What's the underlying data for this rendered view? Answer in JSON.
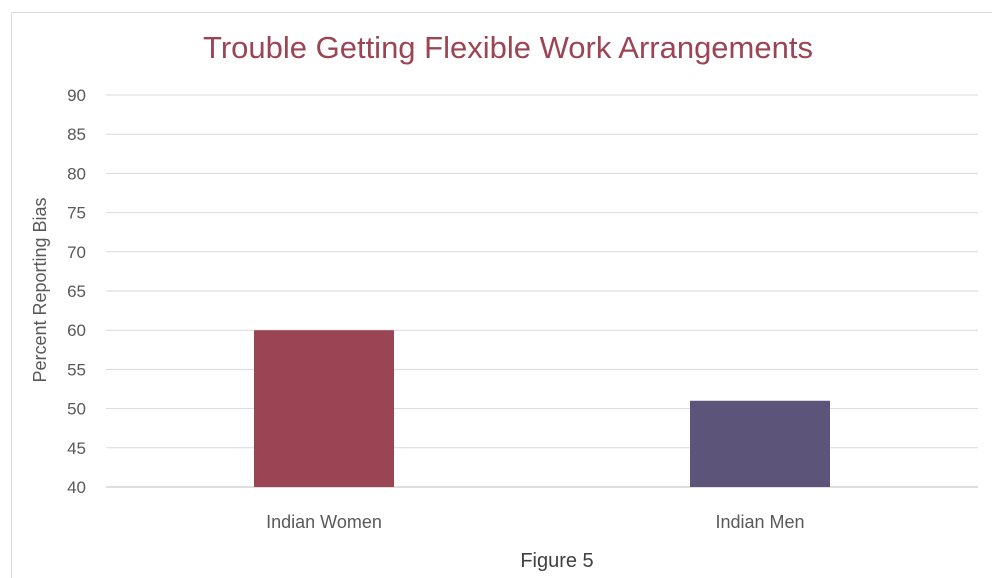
{
  "chart_data": {
    "type": "bar",
    "title": "Trouble Getting Flexible Work Arrangements",
    "ylabel": "Percent Reporting Bias",
    "xlabel": "",
    "categories": [
      "Indian Women",
      "Indian Men"
    ],
    "values": [
      60,
      51
    ],
    "colors": [
      "#9b4554",
      "#5c5479"
    ],
    "ylim": [
      40,
      90
    ],
    "yticks": [
      "90",
      "85",
      "80",
      "75",
      "70",
      "65",
      "60",
      "55",
      "50",
      "45",
      "40"
    ],
    "grid": true,
    "caption": "Figure 5"
  }
}
